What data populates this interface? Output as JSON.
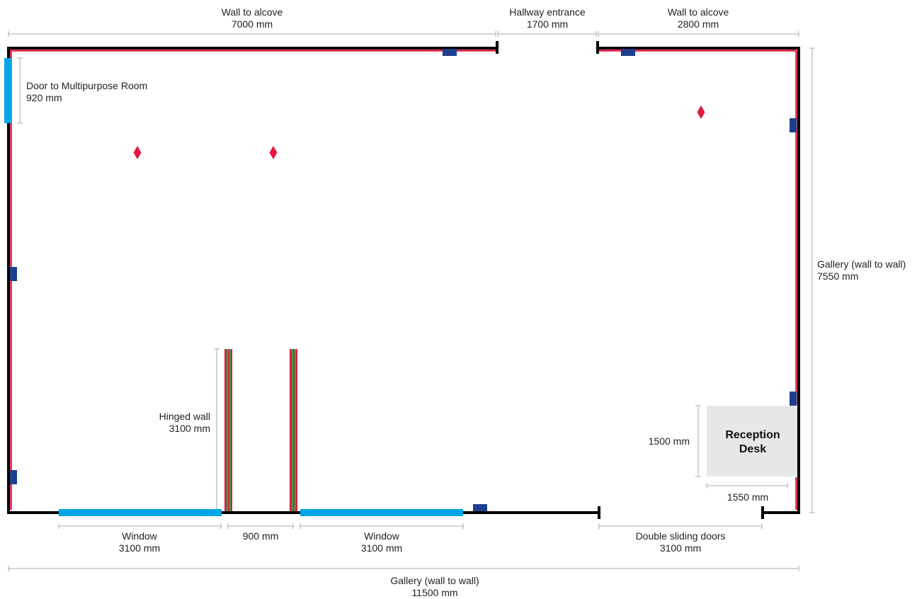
{
  "colors": {
    "wall": "#000000",
    "wall_lining": "#e5173f",
    "window": "#00a6e6",
    "power_outlet": "#1c3f8f",
    "hinged_wall_stripe_green": "#3a9a4a",
    "hinged_wall_stripe_red": "#e5173f",
    "reception_desk": "#e6e7e8",
    "dimension_line": "#999999",
    "light_marker": "#e5173f"
  },
  "dimensions": {
    "top_left": {
      "label": "Wall to alcove",
      "value": "7000 mm"
    },
    "top_mid": {
      "label": "Hallway entrance",
      "value": "1700 mm"
    },
    "top_right": {
      "label": "Wall to alcove",
      "value": "2800 mm"
    },
    "door": {
      "label": "Door to Multipurpose Room",
      "value": "920 mm"
    },
    "right_height": {
      "label": "Gallery (wall to wall)",
      "value": "7550 mm"
    },
    "hinged": {
      "label": "Hinged wall",
      "value": "3100 mm"
    },
    "desk_h": {
      "value": "1500 mm"
    },
    "desk_w": {
      "value": "1550 mm"
    },
    "window_left": {
      "label": "Window",
      "value": "3100 mm"
    },
    "gap": {
      "value": "900 mm"
    },
    "window_right": {
      "label": "Window",
      "value": "3100 mm"
    },
    "sliding": {
      "label": "Double sliding doors",
      "value": "3100 mm"
    },
    "bottom_total": {
      "label": "Gallery (wall to wall)",
      "value": "11500 mm"
    }
  },
  "reception_desk": {
    "line1": "Reception",
    "line2": "Desk"
  }
}
